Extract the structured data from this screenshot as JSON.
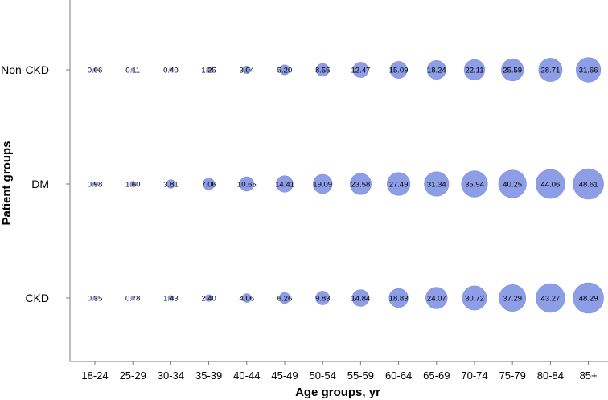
{
  "chart_data": {
    "type": "scatter",
    "subtype": "bubble",
    "xlabel": "Age groups, yr",
    "ylabel": "Patient groups",
    "categories": [
      "18-24",
      "25-29",
      "30-34",
      "35-39",
      "40-44",
      "45-49",
      "50-54",
      "55-59",
      "60-64",
      "65-69",
      "70-74",
      "75-79",
      "80-84",
      "85+"
    ],
    "groups": [
      "Non-CKD",
      "DM",
      "CKD"
    ],
    "series": [
      {
        "name": "Non-CKD",
        "values": [
          0.06,
          0.11,
          0.4,
          1.25,
          3.04,
          5.2,
          8.55,
          12.47,
          15.09,
          18.24,
          22.11,
          25.59,
          28.71,
          31.66
        ],
        "labels": [
          "0.06",
          "0.11",
          "0.40",
          "1.25",
          "3.04",
          "5.20",
          "8.55",
          "12.47",
          "15.09",
          "18.24",
          "22.11",
          "25.59",
          "28.71",
          "31.66"
        ]
      },
      {
        "name": "DM",
        "values": [
          0.98,
          1.6,
          3.81,
          7.06,
          10.65,
          14.41,
          19.09,
          23.58,
          27.49,
          31.34,
          35.94,
          40.25,
          44.06,
          48.61
        ],
        "labels": [
          "0.98",
          "1.60",
          "3.81",
          "7.06",
          "10.65",
          "14.41",
          "19.09",
          "23.58",
          "27.49",
          "31.34",
          "35.94",
          "40.25",
          "44.06",
          "48.61"
        ]
      },
      {
        "name": "CKD",
        "values": [
          0.35,
          0.78,
          1.43,
          2.4,
          4.06,
          6.26,
          9.83,
          14.84,
          18.83,
          24.07,
          30.72,
          37.29,
          43.27,
          48.29
        ],
        "labels": [
          "0.35",
          "0.78",
          "1.43",
          "2.40",
          "4.06",
          "6.26",
          "9.83",
          "14.84",
          "18.83",
          "24.07",
          "30.72",
          "37.29",
          "43.27",
          "48.29"
        ]
      }
    ],
    "bubble_color": "#8d9de6",
    "bubble_stroke": "#7f8fdc",
    "grid": false,
    "legend": "none"
  }
}
